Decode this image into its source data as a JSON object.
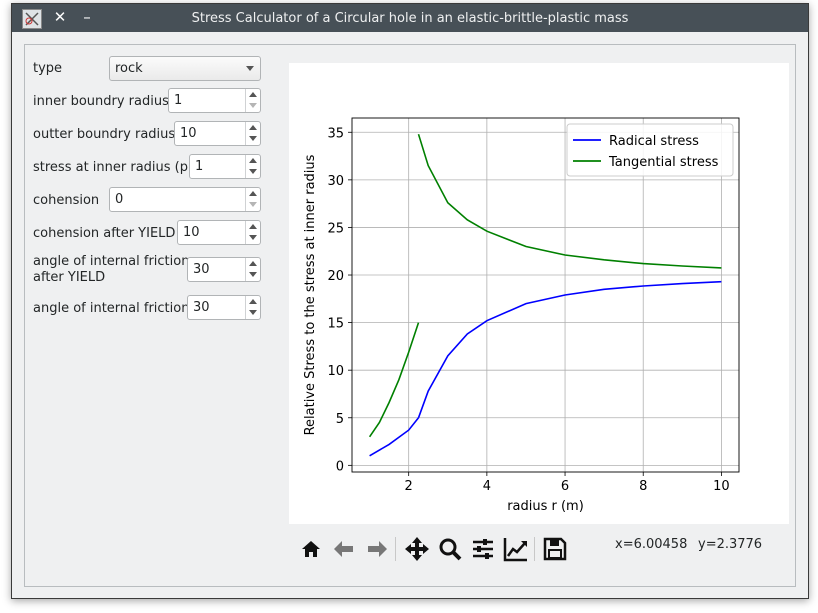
{
  "window": {
    "title": "Stress Calculator of a Circular hole in an elastic-brittle-plastic mass"
  },
  "form": {
    "type": {
      "label": "type",
      "value": "rock"
    },
    "inner_radius": {
      "label": "inner boundry radius",
      "value": "1"
    },
    "outer_radius": {
      "label": "outter boundry radius",
      "value": "10"
    },
    "stress_inner": {
      "label": "stress at inner radius (pi)",
      "value": "1"
    },
    "cohension": {
      "label": "cohension",
      "value": "0"
    },
    "cohension_after": {
      "label": "cohension after YIELD",
      "value": "10"
    },
    "friction_after": {
      "label_line1": "angle of internal friction",
      "label_line2": "after YIELD",
      "value": "30"
    },
    "friction": {
      "label": "angle of internal friction",
      "value": "30"
    }
  },
  "toolbar": {
    "icons": [
      "home-icon",
      "back-arrow-icon",
      "forward-arrow-icon",
      "pan-icon",
      "zoom-icon",
      "configure-subplots-icon",
      "edit-axis-icon",
      "save-icon"
    ],
    "x_readout": "x=6.00458",
    "y_readout": "y=2.3776"
  },
  "chart_data": {
    "type": "line",
    "xlabel": "radius r (m)",
    "ylabel": "Relative Stress to the stress at inner radius",
    "xlim": [
      0.55,
      10.45
    ],
    "ylim": [
      -0.7,
      36.5
    ],
    "xticks": [
      2,
      4,
      6,
      8,
      10
    ],
    "yticks": [
      0,
      5,
      10,
      15,
      20,
      25,
      30,
      35
    ],
    "grid": true,
    "legend": "top-right",
    "series": [
      {
        "name": "Radical stress",
        "color": "#0000ff",
        "segments": [
          [
            [
              1.0,
              1.0
            ],
            [
              1.5,
              2.2
            ],
            [
              2.0,
              3.7
            ],
            [
              2.25,
              5.0
            ]
          ],
          [
            [
              2.25,
              5.0
            ],
            [
              2.5,
              7.8
            ],
            [
              3.0,
              11.5
            ],
            [
              3.5,
              13.8
            ],
            [
              4.0,
              15.2
            ],
            [
              5.0,
              17.0
            ],
            [
              6.0,
              17.9
            ],
            [
              7.0,
              18.5
            ],
            [
              8.0,
              18.85
            ],
            [
              9.0,
              19.1
            ],
            [
              10.0,
              19.3
            ]
          ]
        ]
      },
      {
        "name": "Tangential stress",
        "color": "#008000",
        "segments": [
          [
            [
              1.0,
              3.0
            ],
            [
              1.25,
              4.5
            ],
            [
              1.5,
              6.6
            ],
            [
              1.75,
              9.0
            ],
            [
              2.0,
              11.9
            ],
            [
              2.25,
              15.0
            ]
          ],
          [
            [
              2.25,
              34.8
            ],
            [
              2.5,
              31.5
            ],
            [
              3.0,
              27.6
            ],
            [
              3.5,
              25.8
            ],
            [
              4.0,
              24.6
            ],
            [
              5.0,
              23.0
            ],
            [
              6.0,
              22.1
            ],
            [
              7.0,
              21.6
            ],
            [
              8.0,
              21.2
            ],
            [
              9.0,
              20.95
            ],
            [
              10.0,
              20.75
            ]
          ]
        ]
      }
    ]
  }
}
